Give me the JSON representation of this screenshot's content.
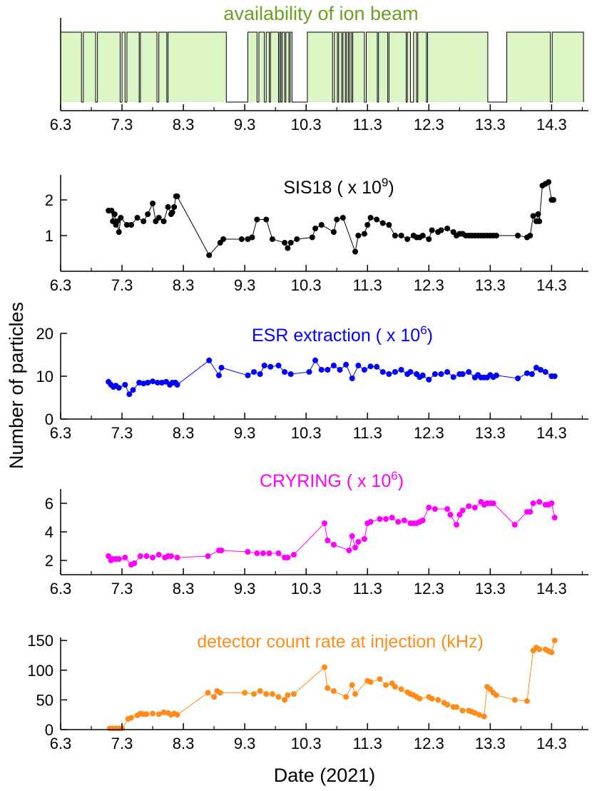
{
  "ylabel": "Number of particles",
  "xlabel": "Date (2021)",
  "chart_data": [
    {
      "type": "area",
      "title": "availability of ion beam",
      "title_color": "#6aa121",
      "fill_color": "#dcf5c5",
      "xlim": [
        6.3,
        14.9
      ],
      "xticks": [
        "6.3",
        "7.3",
        "8.3",
        "9.3",
        "10.3",
        "11.3",
        "12.3",
        "13.3",
        "14.3"
      ],
      "ylim": [
        0,
        1
      ],
      "yticks": [],
      "on_intervals": [
        [
          6.3,
          6.64
        ],
        [
          6.67,
          6.87
        ],
        [
          6.9,
          7.27
        ],
        [
          7.3,
          7.35
        ],
        [
          7.38,
          7.58
        ],
        [
          7.6,
          7.87
        ],
        [
          7.9,
          8.03
        ],
        [
          8.05,
          9.0
        ],
        [
          9.35,
          9.5
        ],
        [
          9.53,
          9.62
        ],
        [
          9.65,
          9.7
        ],
        [
          9.72,
          9.85
        ],
        [
          9.87,
          9.89
        ],
        [
          9.91,
          9.95
        ],
        [
          9.97,
          10.02
        ],
        [
          10.04,
          10.07
        ],
        [
          10.32,
          10.73
        ],
        [
          10.76,
          10.81
        ],
        [
          10.83,
          10.88
        ],
        [
          10.9,
          10.94
        ],
        [
          10.96,
          10.99
        ],
        [
          11.01,
          11.04
        ],
        [
          11.06,
          11.25
        ],
        [
          11.28,
          11.46
        ],
        [
          11.48,
          11.63
        ],
        [
          11.65,
          11.93
        ],
        [
          11.95,
          12.0
        ],
        [
          12.05,
          12.1
        ],
        [
          12.12,
          12.26
        ],
        [
          12.28,
          13.26
        ],
        [
          13.57,
          14.28
        ],
        [
          14.31,
          14.82
        ]
      ]
    },
    {
      "type": "line",
      "title": "SIS18 ( x 10",
      "title_exp": "9",
      "title_close": ")",
      "color": "#000000",
      "xlim": [
        6.3,
        14.9
      ],
      "xticks": [
        "6.3",
        "7.3",
        "8.3",
        "9.3",
        "10.3",
        "11.3",
        "12.3",
        "13.3",
        "14.3"
      ],
      "ylim": [
        0,
        2.7
      ],
      "yticks": [
        1,
        2
      ],
      "x": [
        7.08,
        7.13,
        7.15,
        7.18,
        7.2,
        7.22,
        7.25,
        7.28,
        7.38,
        7.45,
        7.55,
        7.65,
        7.72,
        7.8,
        7.85,
        7.9,
        7.98,
        8.05,
        8.1,
        8.12,
        8.15,
        8.18,
        8.2,
        8.72,
        8.9,
        8.95,
        9.25,
        9.35,
        9.42,
        9.5,
        9.65,
        9.75,
        9.95,
        10.0,
        10.05,
        10.15,
        10.4,
        10.45,
        10.55,
        10.75,
        10.8,
        10.9,
        11.1,
        11.15,
        11.25,
        11.3,
        11.35,
        11.45,
        11.55,
        11.65,
        11.75,
        11.85,
        11.95,
        12.05,
        12.1,
        12.15,
        12.2,
        12.3,
        12.35,
        12.45,
        12.5,
        12.6,
        12.7,
        12.75,
        12.8,
        12.85,
        12.9,
        12.95,
        13.0,
        13.05,
        13.1,
        13.15,
        13.2,
        13.25,
        13.3,
        13.35,
        13.4,
        13.75,
        13.9,
        13.95,
        14.0,
        14.05,
        14.08,
        14.1,
        14.15,
        14.2,
        14.25,
        14.3,
        14.33
      ],
      "y": [
        1.7,
        1.7,
        1.4,
        1.6,
        1.3,
        1.4,
        1.1,
        1.5,
        1.3,
        1.3,
        1.5,
        1.4,
        1.6,
        1.9,
        1.4,
        1.5,
        1.4,
        1.8,
        1.6,
        1.65,
        1.8,
        2.1,
        2.1,
        0.45,
        0.8,
        0.9,
        0.9,
        0.9,
        0.95,
        1.45,
        1.45,
        0.9,
        0.8,
        0.65,
        0.8,
        0.9,
        0.95,
        1.2,
        1.3,
        1.1,
        1.45,
        1.5,
        0.55,
        1.0,
        1.05,
        1.3,
        1.5,
        1.45,
        1.35,
        1.3,
        1.0,
        1.0,
        0.9,
        1.0,
        0.95,
        0.95,
        1.0,
        0.9,
        1.15,
        1.1,
        1.15,
        1.2,
        1.1,
        1.0,
        1.05,
        1.05,
        1.0,
        1.0,
        1.0,
        1.0,
        1.0,
        1.0,
        1.0,
        1.0,
        1.0,
        1.0,
        1.0,
        1.0,
        0.95,
        1.0,
        1.55,
        1.4,
        1.6,
        1.4,
        2.4,
        2.45,
        2.5,
        2.0,
        2.0
      ]
    },
    {
      "type": "line",
      "title": "ESR extraction ( x 10",
      "title_exp": "6",
      "title_close": ")",
      "color": "#0000ff",
      "xlim": [
        6.3,
        14.9
      ],
      "xticks": [
        "6.3",
        "7.3",
        "8.3",
        "9.3",
        "10.3",
        "11.3",
        "12.3",
        "13.3",
        "14.3"
      ],
      "ylim": [
        0,
        20
      ],
      "yticks": [
        0,
        10,
        20
      ],
      "x": [
        7.08,
        7.12,
        7.16,
        7.2,
        7.25,
        7.35,
        7.42,
        7.48,
        7.58,
        7.65,
        7.72,
        7.8,
        7.88,
        7.95,
        8.02,
        8.08,
        8.12,
        8.17,
        8.2,
        8.72,
        8.88,
        8.92,
        9.35,
        9.45,
        9.55,
        9.62,
        9.72,
        9.85,
        9.95,
        10.05,
        10.35,
        10.45,
        10.55,
        10.65,
        10.75,
        10.85,
        10.95,
        11.05,
        11.15,
        11.25,
        11.35,
        11.45,
        11.55,
        11.65,
        11.75,
        11.85,
        11.95,
        12.0,
        12.1,
        12.15,
        12.2,
        12.3,
        12.4,
        12.5,
        12.6,
        12.7,
        12.8,
        12.85,
        12.95,
        13.05,
        13.1,
        13.15,
        13.2,
        13.25,
        13.3,
        13.35,
        13.4,
        13.75,
        13.9,
        13.98,
        14.05,
        14.12,
        14.2,
        14.3,
        14.35
      ],
      "y": [
        8.7,
        8.0,
        7.5,
        7.8,
        7.3,
        8.0,
        5.8,
        6.8,
        8.5,
        8.3,
        8.5,
        8.8,
        8.5,
        8.5,
        8.7,
        8.0,
        8.5,
        8.5,
        8.0,
        13.7,
        10.2,
        12.0,
        10.2,
        11.0,
        10.5,
        12.5,
        12.2,
        12.5,
        11.0,
        10.5,
        11.0,
        13.7,
        11.5,
        11.5,
        12.5,
        11.5,
        12.7,
        9.5,
        12.5,
        11.5,
        12.3,
        12.2,
        11.0,
        10.5,
        11.0,
        11.5,
        10.5,
        11.0,
        10.5,
        9.8,
        10.2,
        9.2,
        10.5,
        10.5,
        11.0,
        9.8,
        10.5,
        10.5,
        11.0,
        9.7,
        10.3,
        9.7,
        9.7,
        9.7,
        10.3,
        9.8,
        10.2,
        9.5,
        10.7,
        10.5,
        12.0,
        11.5,
        11.0,
        10.0,
        10.0
      ]
    },
    {
      "type": "line",
      "title": "CRYRING ( x 10",
      "title_exp": "6",
      "title_close": ")",
      "color": "#ff00ff",
      "xlim": [
        6.3,
        14.9
      ],
      "xticks": [
        "6.3",
        "7.3",
        "8.3",
        "9.3",
        "10.3",
        "11.3",
        "12.3",
        "13.3",
        "14.3"
      ],
      "ylim": [
        1,
        7
      ],
      "yticks": [
        2,
        4,
        6
      ],
      "x": [
        7.08,
        7.12,
        7.15,
        7.2,
        7.25,
        7.35,
        7.45,
        7.5,
        7.6,
        7.7,
        7.8,
        7.9,
        8.0,
        8.05,
        8.1,
        8.2,
        8.7,
        8.88,
        8.92,
        9.35,
        9.5,
        9.6,
        9.7,
        9.85,
        9.95,
        10.0,
        10.1,
        10.6,
        10.65,
        10.75,
        11.0,
        11.05,
        11.1,
        11.15,
        11.25,
        11.3,
        11.35,
        11.5,
        11.6,
        11.7,
        11.8,
        11.9,
        12.0,
        12.05,
        12.1,
        12.15,
        12.2,
        12.3,
        12.4,
        12.6,
        12.65,
        12.75,
        12.8,
        12.85,
        12.95,
        13.05,
        13.15,
        13.2,
        13.25,
        13.3,
        13.35,
        13.7,
        13.9,
        13.95,
        14.0,
        14.1,
        14.2,
        14.25,
        14.3,
        14.35
      ],
      "y": [
        2.3,
        2.0,
        2.1,
        2.1,
        2.1,
        2.2,
        1.7,
        1.8,
        2.3,
        2.3,
        2.2,
        2.4,
        2.2,
        2.3,
        2.3,
        2.2,
        2.3,
        2.7,
        2.7,
        2.6,
        2.5,
        2.5,
        2.5,
        2.5,
        2.2,
        2.2,
        2.4,
        4.6,
        3.4,
        3.1,
        2.7,
        3.7,
        2.9,
        3.3,
        3.5,
        4.6,
        4.7,
        4.9,
        4.9,
        5.0,
        4.7,
        4.8,
        4.6,
        4.6,
        4.6,
        4.7,
        4.8,
        5.7,
        5.6,
        5.6,
        5.2,
        4.5,
        5.2,
        5.5,
        5.8,
        5.7,
        6.1,
        5.9,
        6.0,
        6.0,
        6.0,
        4.5,
        5.4,
        5.4,
        6.0,
        6.1,
        5.9,
        5.9,
        6.0,
        5.0
      ]
    },
    {
      "type": "line",
      "title": "detector count rate at injection (kHz)",
      "color": "#ff8c1a",
      "xlim": [
        6.3,
        14.9
      ],
      "xticks": [
        "6.3",
        "7.3",
        "8.3",
        "9.3",
        "10.3",
        "11.3",
        "12.3",
        "13.3",
        "14.3"
      ],
      "ylim": [
        0,
        155
      ],
      "yticks": [
        0,
        50,
        100,
        150
      ],
      "x": [
        7.1,
        7.15,
        7.2,
        7.25,
        7.3,
        7.4,
        7.45,
        7.55,
        7.6,
        7.65,
        7.7,
        7.8,
        7.9,
        7.98,
        8.05,
        8.1,
        8.15,
        8.2,
        8.7,
        8.8,
        8.85,
        8.9,
        9.3,
        9.45,
        9.55,
        9.65,
        9.75,
        9.85,
        9.95,
        10.0,
        10.1,
        10.6,
        10.65,
        10.75,
        10.95,
        11.05,
        11.1,
        11.3,
        11.35,
        11.5,
        11.6,
        11.7,
        11.75,
        11.85,
        11.95,
        12.0,
        12.05,
        12.1,
        12.15,
        12.3,
        12.35,
        12.45,
        12.55,
        12.6,
        12.7,
        12.75,
        12.85,
        12.95,
        13.0,
        13.05,
        13.12,
        13.2,
        13.25,
        13.3,
        13.35,
        13.4,
        13.7,
        13.9,
        14.0,
        14.05,
        14.1,
        14.2,
        14.25,
        14.3,
        14.35
      ],
      "y": [
        2,
        2,
        2,
        2,
        2,
        18,
        20,
        24,
        27,
        26,
        26,
        27,
        26,
        29,
        28,
        25,
        27,
        25,
        62,
        55,
        65,
        62,
        62,
        60,
        65,
        60,
        60,
        55,
        50,
        58,
        60,
        105,
        70,
        65,
        55,
        75,
        60,
        82,
        80,
        85,
        75,
        78,
        72,
        68,
        63,
        60,
        58,
        55,
        52,
        55,
        52,
        50,
        45,
        42,
        38,
        38,
        32,
        32,
        30,
        28,
        25,
        22,
        72,
        68,
        62,
        58,
        50,
        48,
        133,
        138,
        135,
        135,
        132,
        130,
        150
      ]
    }
  ]
}
